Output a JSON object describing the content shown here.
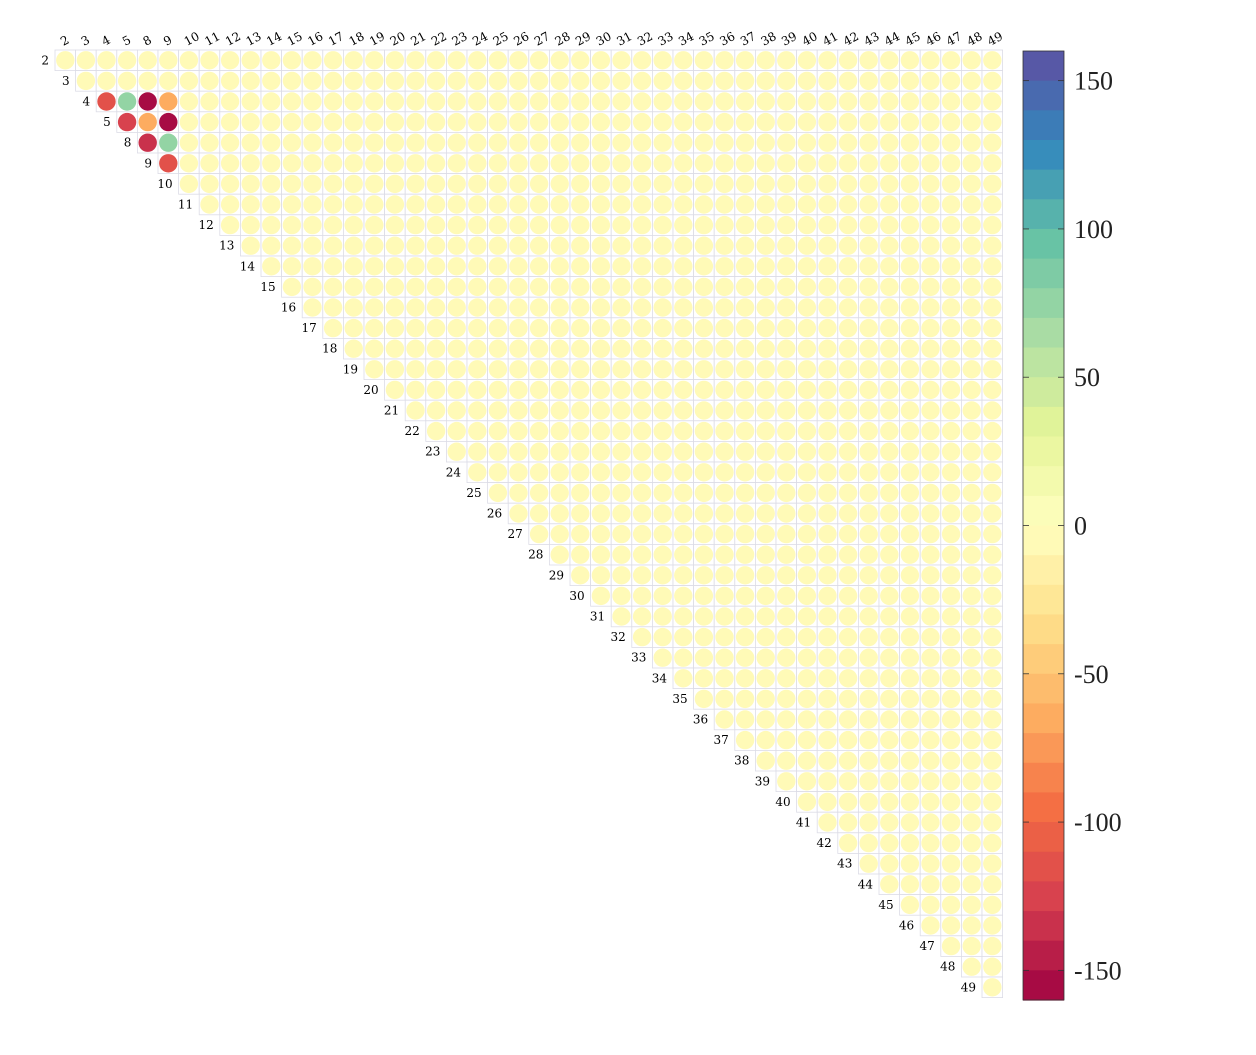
{
  "chart_data": {
    "type": "heatmap",
    "shape": "upper-triangle-circles",
    "labels": [
      "2",
      "3",
      "4",
      "5",
      "8",
      "9",
      "10",
      "11",
      "12",
      "13",
      "14",
      "15",
      "16",
      "17",
      "18",
      "19",
      "20",
      "21",
      "22",
      "23",
      "24",
      "25",
      "26",
      "27",
      "28",
      "29",
      "30",
      "31",
      "32",
      "33",
      "34",
      "35",
      "36",
      "37",
      "38",
      "39",
      "40",
      "41",
      "42",
      "43",
      "44",
      "45",
      "46",
      "47",
      "48",
      "49"
    ],
    "default_value": -5,
    "cells": [
      {
        "row": "4",
        "col": "4",
        "value": -120
      },
      {
        "row": "4",
        "col": "5",
        "value": 75
      },
      {
        "row": "4",
        "col": "8",
        "value": -160
      },
      {
        "row": "4",
        "col": "9",
        "value": -68
      },
      {
        "row": "5",
        "col": "5",
        "value": -130
      },
      {
        "row": "5",
        "col": "8",
        "value": -68
      },
      {
        "row": "5",
        "col": "9",
        "value": -160
      },
      {
        "row": "8",
        "col": "8",
        "value": -135
      },
      {
        "row": "8",
        "col": "9",
        "value": 75
      },
      {
        "row": "9",
        "col": "9",
        "value": -120
      }
    ],
    "colorbar": {
      "min": -160,
      "max": 160,
      "levels": 32,
      "ticks": [
        150,
        100,
        50,
        0,
        -50,
        -100,
        -150
      ],
      "colormap": "Spectral"
    }
  }
}
